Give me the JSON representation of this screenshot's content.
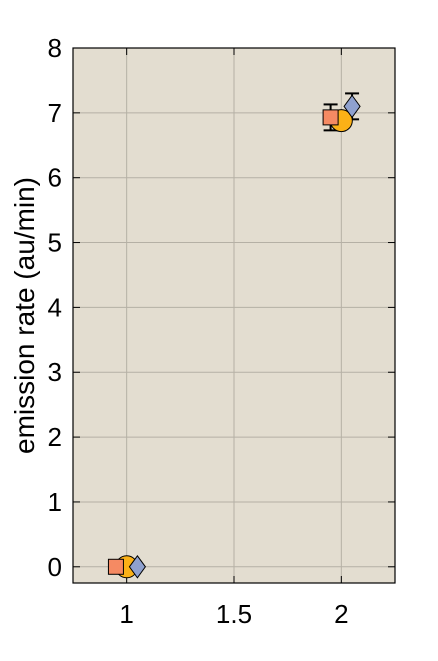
{
  "chart_data": {
    "type": "scatter",
    "title": "",
    "xlabel": "",
    "ylabel": "emission rate (au/min)",
    "xlim": [
      0.75,
      2.25
    ],
    "ylim": [
      -0.25,
      8
    ],
    "xticks": [
      1,
      1.5,
      2
    ],
    "yticks": [
      0,
      1,
      2,
      3,
      4,
      5,
      6,
      7,
      8
    ],
    "xtick_labels": [
      "1",
      "1.5",
      "2"
    ],
    "ytick_labels": [
      "0",
      "1",
      "2",
      "3",
      "4",
      "5",
      "6",
      "7",
      "8"
    ],
    "grid": true,
    "legend": "none",
    "colors": {
      "plot_background": "#e3ddd0",
      "grid": "#b5b0a5"
    },
    "series": [
      {
        "marker": "square",
        "color": "#f58a63",
        "points": [
          {
            "x": 0.95,
            "y": 0.0
          },
          {
            "x": 1.95,
            "y": 6.93,
            "err": 0.2
          }
        ]
      },
      {
        "marker": "circle",
        "color": "#fbb117",
        "points": [
          {
            "x": 1.0,
            "y": 0.0
          },
          {
            "x": 2.0,
            "y": 6.88
          }
        ]
      },
      {
        "marker": "diamond",
        "color": "#8fa1cf",
        "points": [
          {
            "x": 1.05,
            "y": 0.0
          },
          {
            "x": 2.05,
            "y": 7.1,
            "err": 0.2
          }
        ]
      }
    ]
  }
}
